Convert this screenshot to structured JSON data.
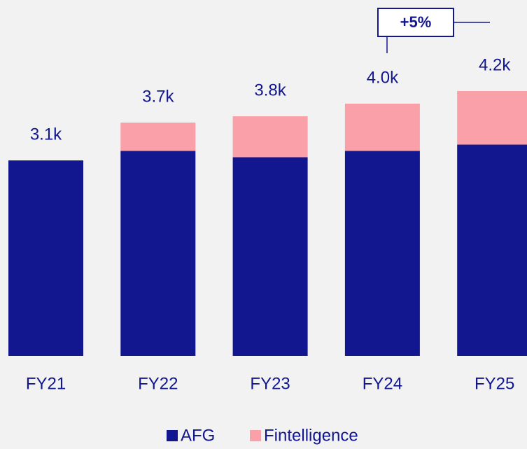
{
  "chart_data": {
    "type": "stacked_bar",
    "categories": [
      "FY21",
      "FY22",
      "FY23",
      "FY24",
      "FY25"
    ],
    "series": [
      {
        "name": "AFG",
        "color": "#13178f",
        "values": [
          3100,
          3250,
          3150,
          3250,
          3350
        ]
      },
      {
        "name": "Fintelligence",
        "color": "#f9a0a8",
        "values": [
          0,
          450,
          650,
          750,
          850
        ]
      }
    ],
    "totals": [
      3100,
      3700,
      3800,
      4000,
      4200
    ],
    "total_labels": [
      "3.1k",
      "3.7k",
      "3.8k",
      "4.0k",
      "4.2k"
    ],
    "annotation": "+5%",
    "ylim": [
      0,
      4500
    ]
  }
}
